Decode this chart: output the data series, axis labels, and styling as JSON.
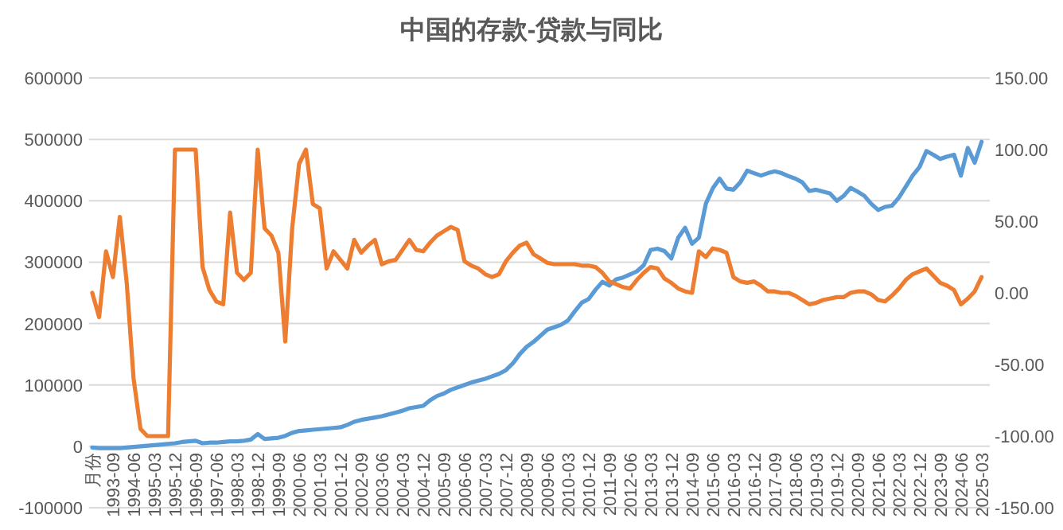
{
  "chart_data": {
    "type": "line",
    "title": "中国的存款-贷款与同比",
    "categories": [
      "月份",
      null,
      null,
      "1993-09",
      null,
      null,
      "1994-06",
      null,
      null,
      "1995-03",
      null,
      null,
      "1995-12",
      null,
      null,
      "1996-09",
      null,
      null,
      "1997-06",
      null,
      null,
      "1998-03",
      null,
      null,
      "1998-12",
      null,
      null,
      "1999-09",
      null,
      null,
      "2000-06",
      null,
      null,
      "2001-03",
      null,
      null,
      "2001-12",
      null,
      null,
      "2002-09",
      null,
      null,
      "2003-06",
      null,
      null,
      "2004-03",
      null,
      null,
      "2004-12",
      null,
      null,
      "2005-09",
      null,
      null,
      "2006-06",
      null,
      null,
      "2007-03",
      null,
      null,
      "2007-12",
      null,
      null,
      "2008-09",
      null,
      null,
      "2009-06",
      null,
      null,
      "2010-03",
      null,
      null,
      "2010-12",
      null,
      null,
      "2011-09",
      null,
      null,
      "2012-06",
      null,
      null,
      "2013-03",
      null,
      null,
      "2013-12",
      null,
      null,
      "2014-09",
      null,
      null,
      "2015-06",
      null,
      null,
      "2016-03",
      null,
      null,
      "2016-12",
      null,
      null,
      "2017-09",
      null,
      null,
      "2018-06",
      null,
      null,
      "2019-03",
      null,
      null,
      "2019-12",
      null,
      null,
      "2020-09",
      null,
      null,
      "2021-06",
      null,
      null,
      "2022-03",
      null,
      null,
      "2022-12",
      null,
      null,
      "2023-09",
      null,
      null,
      "2024-06",
      null,
      null,
      "2025-03"
    ],
    "series": [
      {
        "color": "#5b9bd5",
        "values": [
          -2000,
          -3000,
          -3000,
          -3000,
          -3000,
          -2000,
          -1000,
          0,
          1000,
          2000,
          3000,
          4000,
          5000,
          7000,
          8000,
          9000,
          5000,
          6000,
          6000,
          7000,
          8000,
          8000,
          9000,
          11000,
          20000,
          12000,
          13000,
          14000,
          17000,
          22000,
          25000,
          26000,
          27000,
          28000,
          29000,
          30000,
          31000,
          35000,
          40000,
          43000,
          45000,
          47000,
          49000,
          52000,
          55000,
          58000,
          62000,
          64000,
          66000,
          75000,
          82000,
          86000,
          92000,
          96000,
          100000,
          104000,
          107000,
          110000,
          114000,
          118000,
          124000,
          135000,
          150000,
          162000,
          170000,
          180000,
          190000,
          194000,
          198000,
          205000,
          220000,
          234000,
          240000,
          255000,
          268000,
          262000,
          272000,
          275000,
          280000,
          285000,
          295000,
          320000,
          322000,
          318000,
          306000,
          340000,
          356000,
          330000,
          340000,
          395000,
          420000,
          436000,
          420000,
          418000,
          430000,
          449000,
          445000,
          441000,
          445000,
          448000,
          445000,
          440000,
          436000,
          430000,
          416000,
          418000,
          415000,
          412000,
          400000,
          408000,
          421000,
          415000,
          408000,
          395000,
          385000,
          390000,
          392000,
          405000,
          423000,
          441000,
          455000,
          481000,
          475000,
          468000,
          472000,
          475000,
          441000,
          486000,
          462000,
          496000
        ]
      },
      {
        "color": "#ed7d31",
        "axis": "y2",
        "values": [
          0,
          -17,
          29,
          11,
          53,
          7,
          -60,
          -95,
          -100,
          -100,
          -100,
          -100,
          100,
          100,
          100,
          100,
          18,
          2,
          -6,
          -8,
          56,
          14,
          9,
          14,
          100,
          45,
          40,
          28,
          -34,
          45,
          90,
          100,
          62,
          59,
          17,
          29,
          23,
          17,
          37,
          28,
          33,
          37,
          20,
          22,
          23,
          30,
          37,
          30,
          29,
          35,
          40,
          43,
          46,
          44,
          22,
          19,
          17,
          13,
          11,
          13,
          22,
          28,
          33,
          35,
          27,
          24,
          21,
          20,
          20,
          20,
          20,
          19,
          19,
          18,
          14,
          8,
          6,
          4,
          3,
          9,
          14,
          18,
          17,
          10,
          7,
          3,
          1,
          0,
          29,
          25,
          31,
          30,
          28,
          11,
          8,
          7,
          8,
          5,
          1,
          1,
          0,
          0,
          -2,
          -5,
          -8,
          -7,
          -5,
          -4,
          -3,
          -3,
          0,
          1,
          1,
          -1,
          -5,
          -6,
          -2,
          3,
          9,
          13,
          15,
          17,
          12,
          7,
          5,
          2,
          -8,
          -4,
          1,
          11
        ]
      }
    ],
    "ylim": [
      -100000,
      600000
    ],
    "yticks": [
      -100000,
      0,
      100000,
      200000,
      300000,
      400000,
      500000,
      600000
    ],
    "y2lim": [
      -150,
      150
    ],
    "y2ticks": [
      {
        "value": -150,
        "label": "-150.00"
      },
      {
        "value": -100,
        "label": "-100.00"
      },
      {
        "value": -50,
        "label": "-50.00"
      },
      {
        "value": 0,
        "label": "0.00"
      },
      {
        "value": 50,
        "label": "50.00"
      },
      {
        "value": 100,
        "label": "100.00"
      },
      {
        "value": 150,
        "label": "150.00"
      }
    ],
    "grid": "y"
  }
}
